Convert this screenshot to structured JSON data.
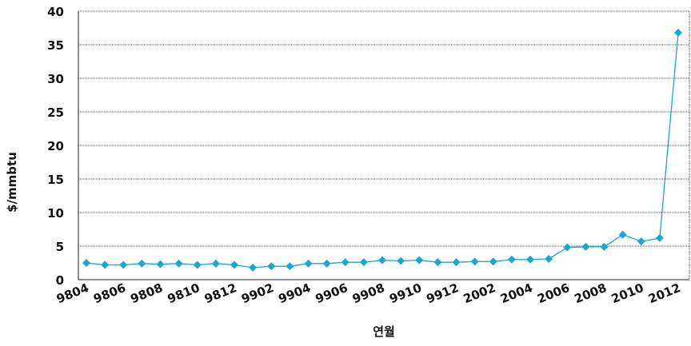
{
  "chart_data": {
    "type": "line",
    "title": "",
    "xlabel": "연월",
    "ylabel": "$/mmbtu",
    "ylim": [
      0,
      40
    ],
    "yticks": [
      0,
      5,
      10,
      15,
      20,
      25,
      30,
      35,
      40
    ],
    "grid": true,
    "x_tick_labels": [
      "9804",
      "9806",
      "9808",
      "9810",
      "9812",
      "9902",
      "9904",
      "9906",
      "9908",
      "9910",
      "9912",
      "2002",
      "2004",
      "2006",
      "2008",
      "2010",
      "2012"
    ],
    "x": [
      "9804",
      "9805",
      "9806",
      "9807",
      "9808",
      "9809",
      "9810",
      "9811",
      "9812",
      "9901",
      "9902",
      "9903",
      "9904",
      "9905",
      "9906",
      "9907",
      "9908",
      "9909",
      "9910",
      "9911",
      "9912",
      "2001",
      "2002",
      "2003",
      "2004",
      "2005",
      "2006",
      "2007",
      "2008",
      "2009",
      "2010",
      "2011",
      "2012"
    ],
    "series": [
      {
        "name": "",
        "color": "#1aa7d0",
        "values": [
          2.5,
          2.2,
          2.2,
          2.4,
          2.3,
          2.4,
          2.2,
          2.4,
          2.2,
          1.8,
          2.0,
          2.0,
          2.4,
          2.4,
          2.6,
          2.6,
          2.9,
          2.8,
          2.9,
          2.6,
          2.6,
          2.7,
          2.7,
          3.0,
          3.0,
          3.1,
          4.8,
          4.9,
          4.9,
          6.7,
          5.7,
          6.2,
          36.8
        ]
      }
    ]
  }
}
